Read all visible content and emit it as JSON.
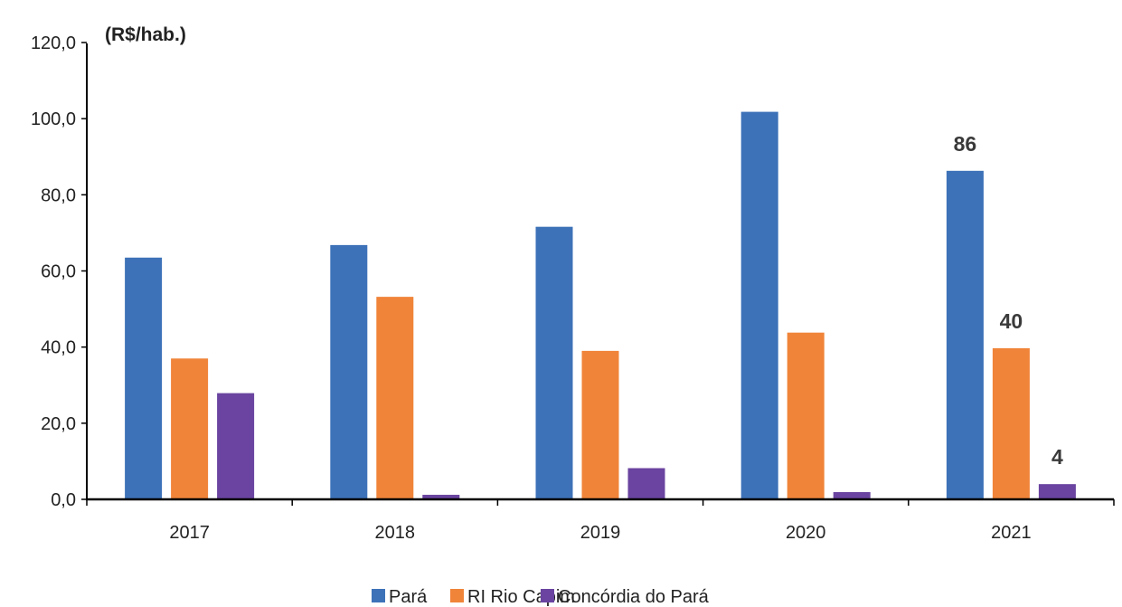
{
  "chart_data": {
    "type": "bar",
    "unit_label": "(R$/hab.)",
    "categories": [
      "2017",
      "2018",
      "2019",
      "2020",
      "2021"
    ],
    "series": [
      {
        "name": "Pará",
        "color": "#3d72b8",
        "values": [
          63.5,
          66.8,
          71.6,
          101.8,
          86.3
        ]
      },
      {
        "name": "RI Rio Capim",
        "color": "#f08439",
        "values": [
          37.0,
          53.2,
          39.0,
          43.8,
          39.7
        ]
      },
      {
        "name": "Concórdia do Pará",
        "color": "#6a44a0",
        "values": [
          27.9,
          1.2,
          8.2,
          1.9,
          4.0
        ]
      }
    ],
    "ylim": [
      0,
      120
    ],
    "yticks": [
      "0,0",
      "20,0",
      "40,0",
      "60,0",
      "80,0",
      "100,0",
      "120,0"
    ],
    "yticks_values": [
      0,
      20,
      40,
      60,
      80,
      100,
      120
    ],
    "data_labels": [
      {
        "series": 0,
        "category": 4,
        "text": "86"
      },
      {
        "series": 1,
        "category": 4,
        "text": "40"
      },
      {
        "series": 2,
        "category": 4,
        "text": "4"
      }
    ],
    "grid": false,
    "legend_position": "bottom"
  }
}
